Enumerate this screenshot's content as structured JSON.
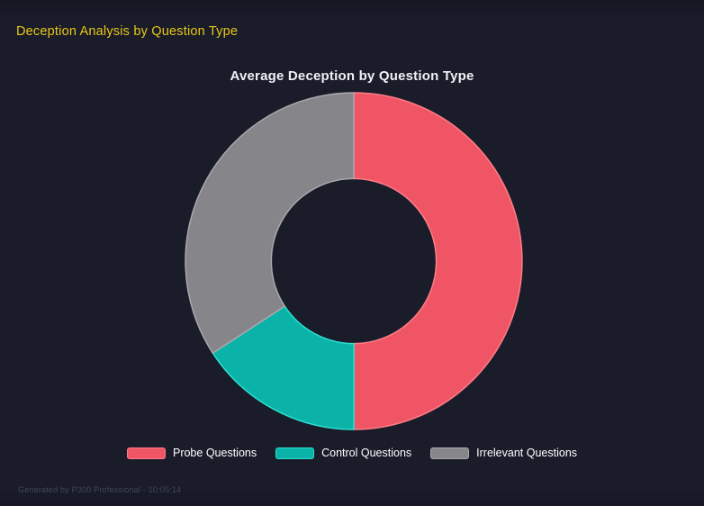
{
  "page": {
    "header_title": "Deception Analysis by Question Type",
    "footer_note": "Generated by P300 Professional - 10:05:14",
    "background_color": "#1a1c2a",
    "header_color": "#e9c616"
  },
  "chart_data": {
    "type": "pie",
    "variant": "donut",
    "title": "Average Deception by Question Type",
    "categories": [
      "Probe Questions",
      "Control Questions",
      "Irrelevant Questions"
    ],
    "values_percent": [
      50.0,
      15.8,
      34.2
    ],
    "colors": [
      "#ef5565",
      "#0ab2a8",
      "#86868a"
    ],
    "border_colors": [
      "#ff7d87",
      "#2be0d1",
      "#a9a9ad"
    ],
    "start_angle_deg": 0,
    "direction": "clockwise",
    "inner_radius_ratio": 0.49,
    "legend_position": "bottom",
    "title_color": "#f0f1f5",
    "legend_text_color": "#ffffff"
  }
}
